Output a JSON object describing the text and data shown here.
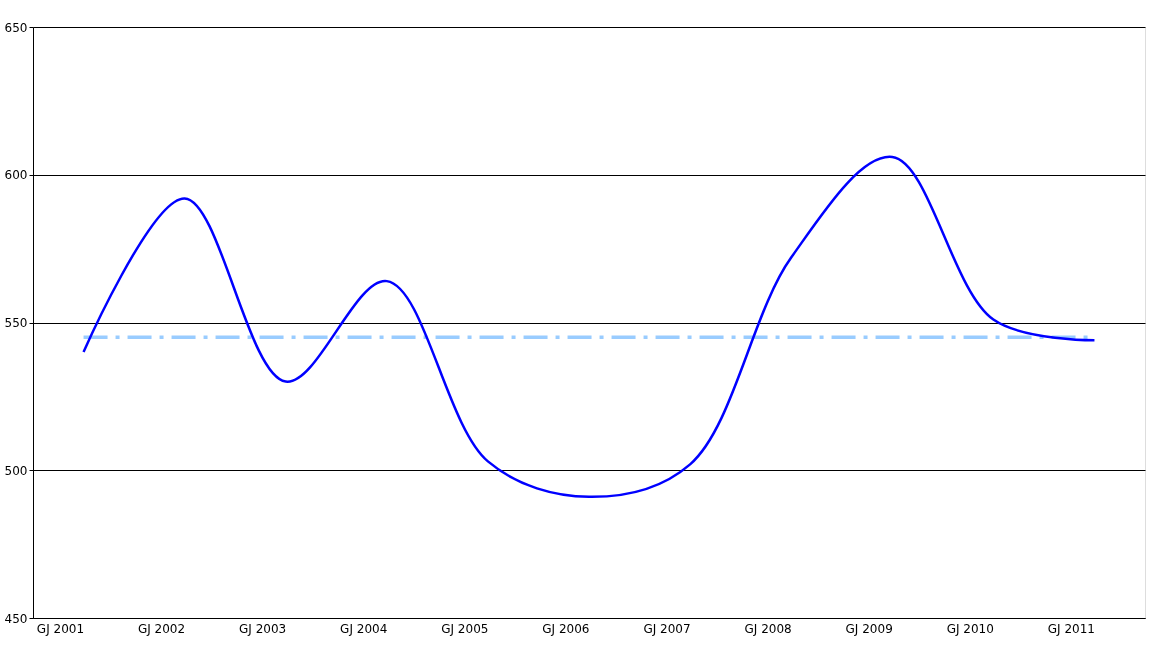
{
  "chart_data": {
    "type": "line",
    "categories": [
      "GJ 2001",
      "GJ 2002",
      "GJ 2003",
      "GJ 2004",
      "GJ 2005",
      "GJ 2006",
      "GJ 2007",
      "GJ 2008",
      "GJ 2009",
      "GJ 2010",
      "GJ 2011"
    ],
    "series": [
      {
        "color": "#0000ff",
        "values": [
          540,
          592,
          530,
          564,
          503,
          491,
          502,
          572,
          606,
          551,
          544
        ]
      }
    ],
    "ylim": [
      450,
      650
    ],
    "yticks": [
      450,
      500,
      550,
      600,
      650
    ],
    "grid": "y",
    "marker": "none",
    "line_style": "solid",
    "ref_lines": [
      {
        "axis": "y",
        "value": 545,
        "color": "#99ccff",
        "line_style": "dashed"
      }
    ]
  }
}
